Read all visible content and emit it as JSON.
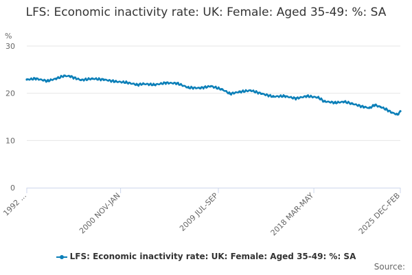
{
  "chart_data": {
    "type": "line",
    "title": "LFS: Economic inactivity rate: UK: Female: Aged 35-49: %: SA",
    "ylabel": "%",
    "xlabel": "",
    "ylim": [
      0,
      30
    ],
    "yticks": [
      0,
      10,
      20,
      30
    ],
    "grid": true,
    "legend_position": "bottom-center",
    "x_tick_labels": [
      "1992 ...",
      "2000 NOV-JAN",
      "2009 JUL-SEP",
      "2018 MAR-MAY",
      "2025 DEC-FEB"
    ],
    "series": [
      {
        "name": "LFS: Economic inactivity rate: UK: Female: Aged 35-49: %: SA",
        "color": "#0b7fb8",
        "x": [
          1992.2,
          1993.0,
          1994.0,
          1994.8,
          1995.5,
          1996.0,
          1997.0,
          1998.0,
          1999.0,
          2000.0,
          2001.0,
          2002.0,
          2002.5,
          2003.5,
          2004.5,
          2005.5,
          2006.5,
          2007.5,
          2008.5,
          2009.5,
          2010.2,
          2011.0,
          2012.0,
          2013.0,
          2014.0,
          2015.0,
          2016.0,
          2017.0,
          2018.0,
          2018.5,
          2019.5,
          2020.3,
          2021.0,
          2022.0,
          2022.5,
          2023.0,
          2023.5,
          2024.0,
          2024.5,
          2025.0,
          2025.25
        ],
        "values": [
          22.9,
          23.1,
          22.6,
          23.1,
          23.7,
          23.6,
          22.8,
          23.1,
          22.9,
          22.5,
          22.3,
          21.8,
          22.0,
          21.8,
          22.2,
          22.1,
          21.2,
          21.1,
          21.5,
          20.8,
          19.9,
          20.3,
          20.6,
          19.9,
          19.3,
          19.4,
          18.9,
          19.4,
          19.1,
          18.3,
          18.0,
          18.2,
          17.8,
          17.1,
          16.9,
          17.5,
          17.1,
          16.6,
          15.9,
          15.5,
          16.2
        ]
      }
    ]
  },
  "legend": {
    "label": "LFS: Economic inactivity rate: UK: Female: Aged 35-49: %: SA"
  },
  "credit": {
    "label": "Source:"
  }
}
